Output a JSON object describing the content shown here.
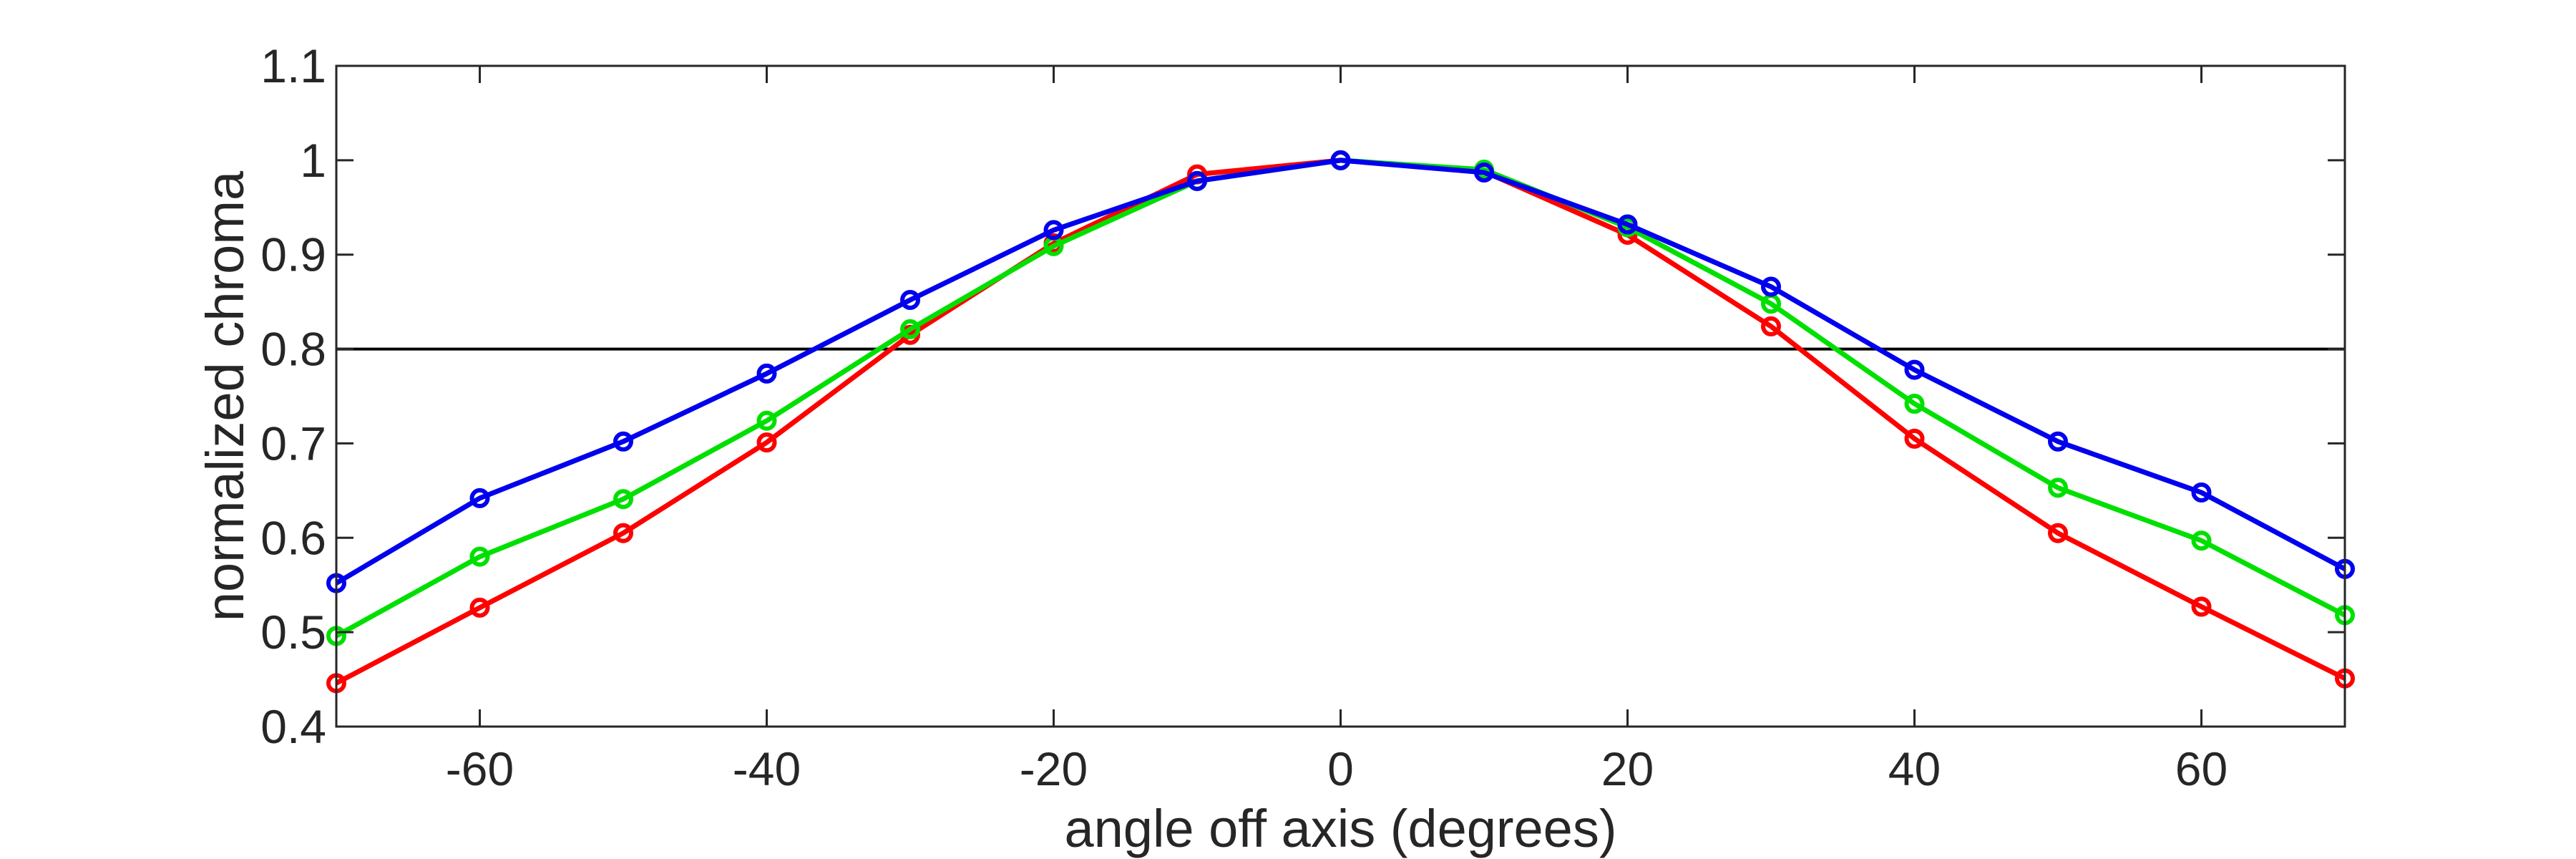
{
  "chart_data": {
    "type": "line",
    "title": "",
    "xlabel": "angle off axis (degrees)",
    "ylabel": "normalized chroma",
    "xlim": [
      -70,
      70
    ],
    "ylim": [
      0.4,
      1.1
    ],
    "x_ticks": [
      -60,
      -40,
      -20,
      0,
      20,
      40,
      60
    ],
    "y_ticks": [
      0.4,
      0.5,
      0.6,
      0.7,
      0.8,
      0.9,
      1,
      1.1
    ],
    "x_tick_labels": [
      "-60",
      "-40",
      "-20",
      "0",
      "20",
      "40",
      "60"
    ],
    "y_tick_labels": [
      "0.4",
      "0.5",
      "0.6",
      "0.7",
      "0.8",
      "0.9",
      "1",
      "1.1"
    ],
    "grid": false,
    "legend": "none",
    "reference_line": {
      "y": 0.8,
      "color": "#000000"
    },
    "x": [
      -70,
      -60,
      -50,
      -40,
      -30,
      -20,
      -10,
      0,
      10,
      20,
      30,
      40,
      50,
      60,
      70
    ],
    "series": [
      {
        "color": "#ff0000",
        "values": [
          0.446,
          0.526,
          0.605,
          0.701,
          0.815,
          0.912,
          0.985,
          1.0,
          0.988,
          0.921,
          0.824,
          0.705,
          0.605,
          0.527,
          0.451
        ]
      },
      {
        "color": "#00e000",
        "values": [
          0.496,
          0.58,
          0.641,
          0.724,
          0.821,
          0.909,
          0.978,
          1.0,
          0.99,
          0.929,
          0.848,
          0.742,
          0.653,
          0.597,
          0.518
        ]
      },
      {
        "color": "#0000ee",
        "values": [
          0.552,
          0.642,
          0.702,
          0.774,
          0.852,
          0.926,
          0.978,
          1.0,
          0.987,
          0.932,
          0.866,
          0.778,
          0.702,
          0.648,
          0.567
        ]
      }
    ]
  }
}
